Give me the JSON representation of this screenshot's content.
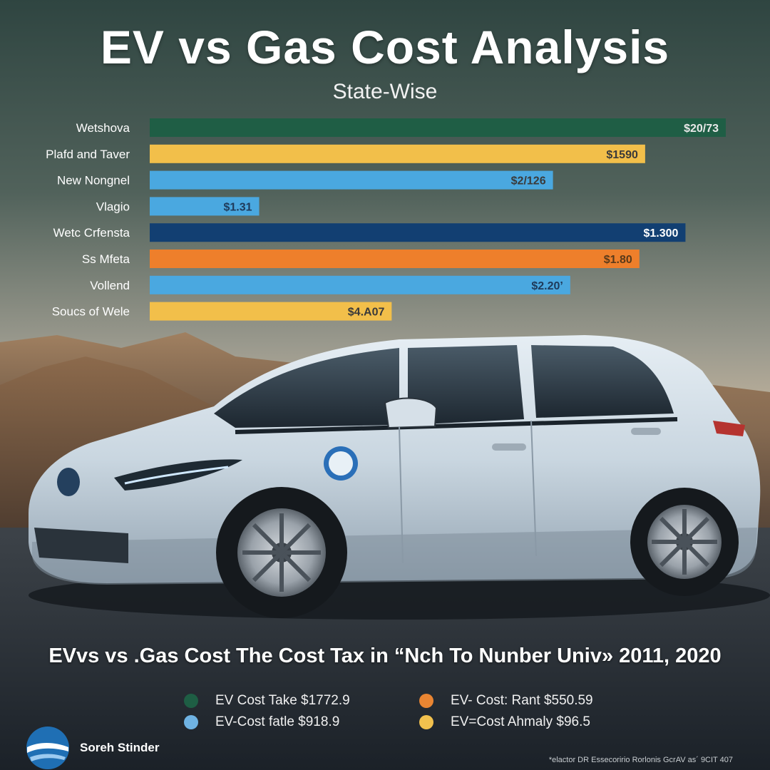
{
  "title": "EV vs Gas Cost Analysis",
  "subtitle": "State-Wise",
  "caption": "EVvs vs .Gas Cost The Cost Tax in “Nch To Nunber Univ» 2011, 2020",
  "chart_data": {
    "type": "bar",
    "orientation": "horizontal",
    "categories": [
      "Wetshova",
      "Plafd and Taver",
      "New Nongnel",
      "Vlagio",
      "Wetc Crfensta",
      "Ss Mfeta",
      "Vollend",
      "Soucs of Wele"
    ],
    "values": [
      1,
      0.86,
      0.7,
      0.19,
      0.93,
      0.85,
      0.73,
      0.42
    ],
    "value_labels": [
      "$20/73",
      "$1590",
      "$2/126",
      "$1.31",
      "$1.300",
      "$1.80",
      "$2.20’",
      "$4.A07"
    ],
    "colors": [
      "#1f5e45",
      "#f2bf4a",
      "#4aa8e0",
      "#4aa8e0",
      "#123f72",
      "#ee7f2b",
      "#4aa8e0",
      "#f2bf4a"
    ],
    "label_colors": [
      "#e8e8e8",
      "#3a3a3a",
      "#3a3a3a",
      "#1f3a5a",
      "#ffffff",
      "#5a3a1a",
      "#1f3a5a",
      "#3a3a3a"
    ],
    "grid": false
  },
  "legend": {
    "items": [
      {
        "label": "EV Cost Take $1772.9",
        "color": "#1e5e44"
      },
      {
        "label": "EV- Cost: Rant $550.59",
        "color": "#e98532"
      },
      {
        "label": "EV-Cost fatle $918.9",
        "color": "#6fb3e3"
      },
      {
        "label": "EV=Cost Ahmaly $96.5",
        "color": "#f2c14e"
      }
    ]
  },
  "brand": {
    "name": "Soreh Stinder"
  },
  "footnote": "*elactor DR Essecoririo Rorlonis GcrAV as´ 9CIT 407"
}
